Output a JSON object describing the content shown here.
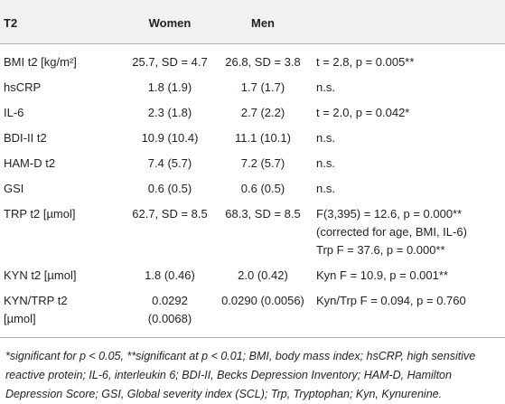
{
  "table": {
    "header": [
      "T2",
      "Women",
      "Men",
      ""
    ],
    "rows": [
      [
        "BMI t2 [kg/m²]",
        "25.7, SD = 4.7",
        "26.8, SD = 3.8",
        "t = 2.8, p = 0.005**"
      ],
      [
        "hsCRP",
        "1.8 (1.9)",
        "1.7 (1.7)",
        "n.s."
      ],
      [
        "IL-6",
        "2.3 (1.8)",
        "2.7 (2.2)",
        "t = 2.0, p = 0.042*"
      ],
      [
        "BDI-II t2",
        "10.9 (10.4)",
        "11.1 (10.1)",
        "n.s."
      ],
      [
        "HAM-D t2",
        "7.4 (5.7)",
        "7.2 (5.7)",
        "n.s."
      ],
      [
        "GSI",
        "0.6 (0.5)",
        "0.6 (0.5)",
        "n.s."
      ],
      [
        "TRP t2 [µmol]",
        "62.7, SD = 8.5",
        "68.3, SD = 8.5",
        [
          "F(3,395) = 12.6, p = 0.000**",
          "(corrected for age, BMI, IL-6)",
          "Trp F = 37.6, p = 0.000**"
        ]
      ],
      [
        "KYN t2 [µmol]",
        "1.8 (0.46)",
        "2.0 (0.42)",
        "Kyn F = 10.9, p = 0.001**"
      ],
      [
        [
          "KYN/TRP t2",
          "[µmol]"
        ],
        "0.0292 (0.0068)",
        "0.0290 (0.0056)",
        "Kyn/Trp F = 0.094, p = 0.760"
      ]
    ],
    "footnote": "*significant for p < 0.05, **significant at p < 0.01; BMI, body mass index; hsCRP, high sensitive reactive protein; IL-6, interleukin 6; BDI-II, Becks Depression Inventory; HAM-D, Hamilton Depression Score; GSI, Global severity index (SCL); Trp, Tryptophan; Kyn, Kynurenine."
  }
}
